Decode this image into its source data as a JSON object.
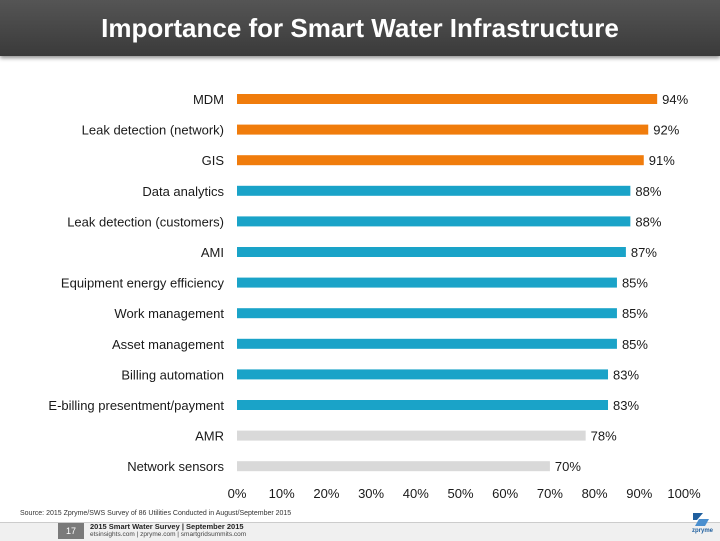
{
  "title": "Importance for Smart Water Infrastructure",
  "source": "Source: 2015 Zpryme/SWS Survey of 86 Utilities Conducted in August/September 2015",
  "footer": {
    "page_number": "17",
    "line1": "2015 Smart Water Survey | September 2015",
    "line2": "etsinsights.com | zpryme.com | smartgridsummits.com",
    "logo_text": "zpryme"
  },
  "colors": {
    "orange": "#f07c0c",
    "blue": "#1aa3c8",
    "gray": "#d9d9d9"
  },
  "chart_data": {
    "type": "bar",
    "orientation": "horizontal",
    "title": "Importance for Smart Water Infrastructure",
    "categories": [
      "MDM",
      "Leak detection (network)",
      "GIS",
      "Data analytics",
      "Leak detection (customers)",
      "AMI",
      "Equipment energy efficiency",
      "Work management",
      "Asset management",
      "Billing automation",
      "E-billing presentment/payment",
      "AMR",
      "Network sensors"
    ],
    "values": [
      94,
      92,
      91,
      88,
      88,
      87,
      85,
      85,
      85,
      83,
      83,
      78,
      70
    ],
    "data_labels": [
      "94%",
      "92%",
      "91%",
      "88%",
      "88%",
      "87%",
      "85%",
      "85%",
      "85%",
      "83%",
      "83%",
      "78%",
      "70%"
    ],
    "bar_color_groups": [
      "orange",
      "orange",
      "orange",
      "blue",
      "blue",
      "blue",
      "blue",
      "blue",
      "blue",
      "blue",
      "blue",
      "gray",
      "gray"
    ],
    "x_ticks": [
      "0%",
      "10%",
      "20%",
      "30%",
      "40%",
      "50%",
      "60%",
      "70%",
      "80%",
      "90%",
      "100%"
    ],
    "xlim": [
      0,
      100
    ],
    "xlabel": "",
    "ylabel": "",
    "grid": false,
    "legend": "none"
  }
}
